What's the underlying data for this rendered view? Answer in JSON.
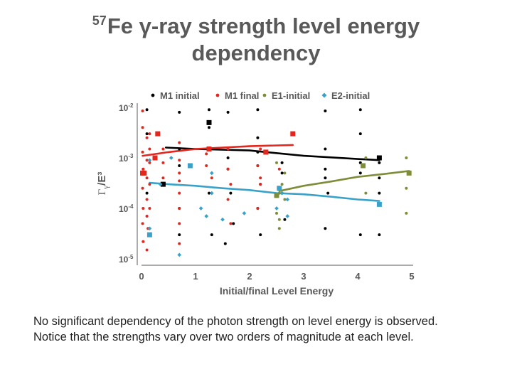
{
  "title": {
    "mass_number": "57",
    "element": "Fe",
    "line1_rest": "γ-ray strength level energy",
    "line2": "dependency"
  },
  "caption": {
    "line1": "No significant dependency of the photon strength on level energy is observed.",
    "line2": "Notice that the strengths vary over two orders of magnitude at each level."
  },
  "chart_data": {
    "type": "scatter",
    "xlabel": "Initial/final Level Energy",
    "ylabel": "Γγ/E³",
    "x_range": [
      0,
      5
    ],
    "y_range": [
      1e-05,
      0.01
    ],
    "y_scale": "log",
    "x_ticks": [
      "0",
      "1",
      "2",
      "3",
      "4",
      "5"
    ],
    "y_ticks": [
      {
        "value": 1e-05,
        "base": "10",
        "exp": "-5"
      },
      {
        "value": 0.0001,
        "base": "10",
        "exp": "-4"
      },
      {
        "value": 0.001,
        "base": "10",
        "exp": "-3"
      },
      {
        "value": 0.01,
        "base": "10",
        "exp": "-2"
      }
    ],
    "legend_position": "top",
    "colors": {
      "M1 initial": "#000000",
      "M1 final": "#e3261e",
      "E1-initial": "#7f8c38",
      "E2-initial": "#3aa2c8",
      "axis": "#595959"
    },
    "series": [
      {
        "name": "M1 initial",
        "color": "#000000",
        "points": [
          [
            0.1,
            0.009
          ],
          [
            0.1,
            0.003
          ],
          [
            0.1,
            0.0002
          ],
          [
            0.15,
            3e-05
          ],
          [
            0.7,
            0.008
          ],
          [
            0.7,
            0.0015
          ],
          [
            0.7,
            0.0007
          ],
          [
            0.7,
            0.0001
          ],
          [
            0.7,
            3e-05
          ],
          [
            1.25,
            0.009
          ],
          [
            1.25,
            0.004
          ],
          [
            1.25,
            0.0002
          ],
          [
            1.3,
            3e-05
          ],
          [
            1.6,
            0.008
          ],
          [
            1.6,
            0.001
          ],
          [
            1.6,
            0.0006
          ],
          [
            1.65,
            0.0002
          ],
          [
            1.7,
            5e-05
          ],
          [
            1.55,
            2e-05
          ],
          [
            2.15,
            0.009
          ],
          [
            2.15,
            0.0025
          ],
          [
            2.15,
            0.0013
          ],
          [
            2.15,
            0.0007
          ],
          [
            2.2,
            0.0003
          ],
          [
            2.15,
            0.0001
          ],
          [
            2.2,
            3e-05
          ],
          [
            2.6,
            0.0008
          ],
          [
            2.6,
            0.0005
          ],
          [
            2.6,
            0.0002
          ],
          [
            2.65,
            6e-05
          ],
          [
            3.4,
            0.0085
          ],
          [
            3.4,
            0.0015
          ],
          [
            3.4,
            0.0006
          ],
          [
            3.4,
            0.0004
          ],
          [
            3.45,
            0.0002
          ],
          [
            3.4,
            4e-05
          ],
          [
            4.05,
            0.009
          ],
          [
            4.05,
            0.003
          ],
          [
            4.05,
            0.0008
          ],
          [
            4.05,
            0.0005
          ],
          [
            4.05,
            3e-05
          ],
          [
            4.4,
            0.0008
          ],
          [
            4.4,
            0.0004
          ],
          [
            4.4,
            0.0002
          ],
          [
            4.4,
            3e-05
          ]
        ],
        "highlight": [
          [
            0.4,
            0.0003
          ],
          [
            1.25,
            0.005
          ],
          [
            4.4,
            0.001
          ]
        ],
        "trend": [
          [
            0.45,
            0.0016
          ],
          [
            1.0,
            0.0015
          ],
          [
            2.0,
            0.0014
          ],
          [
            3.0,
            0.0011
          ],
          [
            4.0,
            0.00095
          ],
          [
            4.4,
            0.0009
          ]
        ]
      },
      {
        "name": "M1 final",
        "color": "#e3261e",
        "points": [
          [
            0.02,
            0.0085
          ],
          [
            0.02,
            0.004
          ],
          [
            0.02,
            0.0013
          ],
          [
            0.03,
            0.0006
          ],
          [
            0.02,
            0.00025
          ],
          [
            0.03,
            0.0001
          ],
          [
            0.02,
            5e-05
          ],
          [
            0.03,
            2.2e-05
          ],
          [
            0.1,
            0.0025
          ],
          [
            0.1,
            0.0009
          ],
          [
            0.1,
            0.0004
          ],
          [
            0.1,
            0.00015
          ],
          [
            0.1,
            7e-05
          ],
          [
            0.12,
            4e-05
          ],
          [
            0.1,
            1.5e-05
          ],
          [
            0.15,
            0.003
          ],
          [
            0.15,
            0.0015
          ],
          [
            0.15,
            0.0008
          ],
          [
            0.15,
            0.0003
          ],
          [
            0.15,
            0.0001
          ],
          [
            0.4,
            0.0015
          ],
          [
            0.4,
            0.0008
          ],
          [
            0.4,
            0.0004
          ],
          [
            0.7,
            0.002
          ],
          [
            0.7,
            0.0009
          ],
          [
            0.7,
            0.0005
          ],
          [
            0.7,
            0.00035
          ],
          [
            0.7,
            0.0002
          ],
          [
            0.7,
            0.0001
          ],
          [
            0.7,
            5e-05
          ],
          [
            0.7,
            2e-05
          ],
          [
            1.2,
            0.0012
          ],
          [
            1.2,
            0.0007
          ],
          [
            1.3,
            0.0004
          ],
          [
            1.6,
            0.0015
          ],
          [
            1.6,
            0.0006
          ],
          [
            1.65,
            0.0003
          ],
          [
            1.6,
            0.00015
          ],
          [
            1.65,
            5e-05
          ],
          [
            2.2,
            0.0015
          ],
          [
            2.15,
            0.0007
          ],
          [
            2.2,
            0.0004
          ],
          [
            2.2,
            0.0003
          ],
          [
            2.15,
            0.0001
          ],
          [
            2.55,
            0.0006
          ]
        ],
        "highlight": [
          [
            0.02,
            0.0005
          ],
          [
            0.05,
            0.0005
          ],
          [
            0.3,
            0.003
          ],
          [
            0.25,
            0.001
          ],
          [
            1.25,
            0.0015
          ],
          [
            2.3,
            0.0013
          ],
          [
            2.8,
            0.003
          ]
        ],
        "trend": [
          [
            0.02,
            0.0011
          ],
          [
            0.5,
            0.0013
          ],
          [
            1.0,
            0.0015
          ],
          [
            1.5,
            0.0016
          ],
          [
            2.0,
            0.0017
          ],
          [
            2.8,
            0.0018
          ]
        ]
      },
      {
        "name": "E1-initial",
        "color": "#7f8c38",
        "points": [
          [
            2.5,
            0.0008
          ],
          [
            2.55,
            0.0002
          ],
          [
            2.5,
            8e-05
          ],
          [
            2.55,
            4e-05
          ],
          [
            2.65,
            0.0005
          ],
          [
            2.6,
            0.0003
          ],
          [
            2.65,
            0.00015
          ],
          [
            2.55,
            6e-05
          ],
          [
            4.15,
            0.001
          ],
          [
            4.15,
            0.0002
          ],
          [
            4.9,
            0.001
          ],
          [
            4.9,
            0.00025
          ],
          [
            4.9,
            8e-05
          ]
        ],
        "highlight": [
          [
            2.5,
            0.00018
          ],
          [
            4.1,
            0.0007
          ],
          [
            4.95,
            0.0005
          ]
        ],
        "trend": [
          [
            2.55,
            0.00022
          ],
          [
            3.0,
            0.00028
          ],
          [
            3.5,
            0.00034
          ],
          [
            4.0,
            0.00042
          ],
          [
            4.5,
            0.00048
          ],
          [
            4.95,
            0.00055
          ]
        ]
      },
      {
        "name": "E2-initial",
        "color": "#3aa2c8",
        "points": [
          [
            0.15,
            0.0009
          ],
          [
            0.15,
            4e-05
          ],
          [
            0.35,
            0.0003
          ],
          [
            0.55,
            0.001
          ],
          [
            0.7,
            1.2e-05
          ],
          [
            1.1,
            0.0001
          ],
          [
            1.2,
            7e-05
          ],
          [
            1.3,
            0.0005
          ],
          [
            1.3,
            0.0002
          ],
          [
            1.5,
            6e-05
          ],
          [
            1.9,
            8e-05
          ],
          [
            2.5,
            0.0001
          ],
          [
            2.6,
            0.0002
          ],
          [
            2.7,
            0.00015
          ],
          [
            2.7,
            7e-05
          ]
        ],
        "highlight": [
          [
            0.15,
            3e-05
          ],
          [
            0.9,
            0.0007
          ],
          [
            2.55,
            0.00025
          ],
          [
            4.4,
            0.00012
          ]
        ],
        "trend": [
          [
            0.15,
            0.00032
          ],
          [
            0.5,
            0.0003
          ],
          [
            1.0,
            0.00028
          ],
          [
            1.5,
            0.00025
          ],
          [
            2.0,
            0.00023
          ],
          [
            2.5,
            0.0002
          ],
          [
            3.0,
            0.00019
          ],
          [
            3.5,
            0.00017
          ],
          [
            4.0,
            0.00015
          ],
          [
            4.4,
            0.00014
          ]
        ]
      }
    ]
  }
}
